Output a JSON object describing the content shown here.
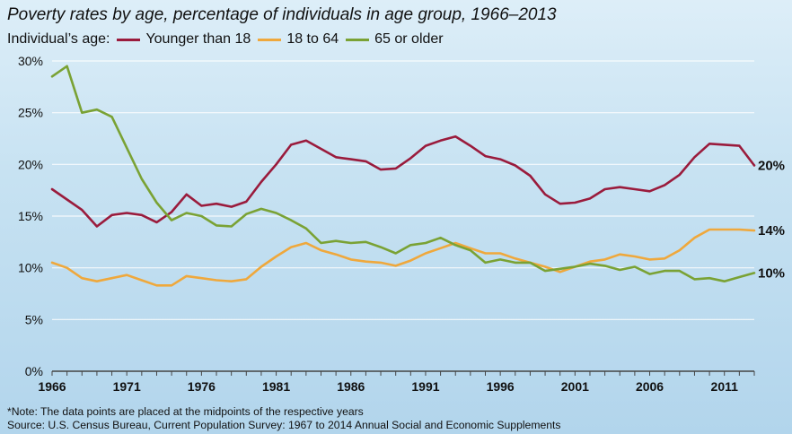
{
  "chart_data": {
    "type": "line",
    "title": "Poverty rates by age, percentage of individuals in age group, 1966–2013",
    "legend_title": "Individual’s age:",
    "legend_placement": "top-left",
    "xlim": [
      1966,
      2013
    ],
    "ylim": [
      0,
      30
    ],
    "x_ticks": [
      "1966",
      "1971",
      "1976",
      "1981",
      "1986",
      "1991",
      "1996",
      "2001",
      "2006",
      "2011"
    ],
    "y_ticks": [
      "0%",
      "5%",
      "10%",
      "15%",
      "20%",
      "25%",
      "30%"
    ],
    "grid": true,
    "series": [
      {
        "name": "Younger than 18",
        "color": "#9a1b3c",
        "end_label": "20%",
        "x": [
          1966,
          1967,
          1968,
          1969,
          1970,
          1971,
          1972,
          1973,
          1974,
          1975,
          1976,
          1977,
          1978,
          1979,
          1980,
          1981,
          1982,
          1983,
          1984,
          1985,
          1986,
          1987,
          1988,
          1989,
          1990,
          1991,
          1992,
          1993,
          1994,
          1995,
          1996,
          1997,
          1998,
          1999,
          2000,
          2001,
          2002,
          2003,
          2004,
          2005,
          2006,
          2007,
          2008,
          2009,
          2010,
          2011,
          2012,
          2013
        ],
        "y": [
          17.6,
          16.6,
          15.6,
          14.0,
          15.1,
          15.3,
          15.1,
          14.4,
          15.4,
          17.1,
          16.0,
          16.2,
          15.9,
          16.4,
          18.3,
          20.0,
          21.9,
          22.3,
          21.5,
          20.7,
          20.5,
          20.3,
          19.5,
          19.6,
          20.6,
          21.8,
          22.3,
          22.7,
          21.8,
          20.8,
          20.5,
          19.9,
          18.9,
          17.1,
          16.2,
          16.3,
          16.7,
          17.6,
          17.8,
          17.6,
          17.4,
          18.0,
          19.0,
          20.7,
          22.0,
          21.9,
          21.8,
          19.9
        ]
      },
      {
        "name": "18 to 64",
        "color": "#efa83c",
        "end_label": "14%",
        "x": [
          1966,
          1967,
          1968,
          1969,
          1970,
          1971,
          1972,
          1973,
          1974,
          1975,
          1976,
          1977,
          1978,
          1979,
          1980,
          1981,
          1982,
          1983,
          1984,
          1985,
          1986,
          1987,
          1988,
          1989,
          1990,
          1991,
          1992,
          1993,
          1994,
          1995,
          1996,
          1997,
          1998,
          1999,
          2000,
          2001,
          2002,
          2003,
          2004,
          2005,
          2006,
          2007,
          2008,
          2009,
          2010,
          2011,
          2012,
          2013
        ],
        "y": [
          10.5,
          10.0,
          9.0,
          8.7,
          9.0,
          9.3,
          8.8,
          8.3,
          8.3,
          9.2,
          9.0,
          8.8,
          8.7,
          8.9,
          10.1,
          11.1,
          12.0,
          12.4,
          11.7,
          11.3,
          10.8,
          10.6,
          10.5,
          10.2,
          10.7,
          11.4,
          11.9,
          12.4,
          11.9,
          11.4,
          11.4,
          10.9,
          10.5,
          10.1,
          9.6,
          10.1,
          10.6,
          10.8,
          11.3,
          11.1,
          10.8,
          10.9,
          11.7,
          12.9,
          13.7,
          13.7,
          13.7,
          13.6
        ]
      },
      {
        "name": "65 or older",
        "color": "#7aa234",
        "end_label": "10%",
        "x": [
          1966,
          1967,
          1968,
          1969,
          1970,
          1971,
          1972,
          1973,
          1974,
          1975,
          1976,
          1977,
          1978,
          1979,
          1980,
          1981,
          1982,
          1983,
          1984,
          1985,
          1986,
          1987,
          1988,
          1989,
          1990,
          1991,
          1992,
          1993,
          1994,
          1995,
          1996,
          1997,
          1998,
          1999,
          2000,
          2001,
          2002,
          2003,
          2004,
          2005,
          2006,
          2007,
          2008,
          2009,
          2010,
          2011,
          2012,
          2013
        ],
        "y": [
          28.5,
          29.5,
          25.0,
          25.3,
          24.6,
          21.6,
          18.6,
          16.3,
          14.6,
          15.3,
          15.0,
          14.1,
          14.0,
          15.2,
          15.7,
          15.3,
          14.6,
          13.8,
          12.4,
          12.6,
          12.4,
          12.5,
          12.0,
          11.4,
          12.2,
          12.4,
          12.9,
          12.2,
          11.7,
          10.5,
          10.8,
          10.5,
          10.5,
          9.7,
          9.9,
          10.1,
          10.4,
          10.2,
          9.8,
          10.1,
          9.4,
          9.7,
          9.7,
          8.9,
          9.0,
          8.7,
          9.1,
          9.5
        ]
      }
    ]
  },
  "footnote": "*Note: The data points are placed at the midpoints of the respective years",
  "source": "Source: U.S. Census Bureau, Current Population Survey: 1967 to 2014 Annual Social and Economic Supplements"
}
